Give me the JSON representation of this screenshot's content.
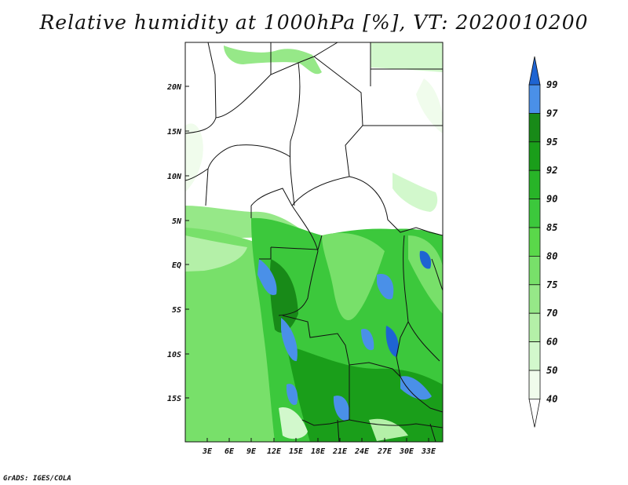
{
  "title": "Relative humidity at 1000hPa [%], VT: 2020010200",
  "footer": "GrADS: IGES/COLA",
  "map": {
    "lat_ticks": [
      "20N",
      "15N",
      "10N",
      "5N",
      "EQ",
      "5S",
      "10S",
      "15S"
    ],
    "lon_ticks": [
      "3E",
      "6E",
      "9E",
      "12E",
      "15E",
      "18E",
      "21E",
      "24E",
      "27E",
      "30E",
      "33E"
    ],
    "lat_range": [
      -20,
      25
    ],
    "lon_range": [
      0,
      35
    ]
  },
  "colorbar": {
    "labels": [
      "99",
      "97",
      "95",
      "92",
      "90",
      "85",
      "80",
      "75",
      "70",
      "60",
      "50",
      "40"
    ],
    "colors": {
      "40": "#f0fcec",
      "50": "#d2f8cc",
      "60": "#b4f0a8",
      "70": "#96e888",
      "75": "#78e06a",
      "80": "#5ad84a",
      "85": "#3cc83c",
      "90": "#28b428",
      "92": "#1a9e1a",
      "95": "#188a18",
      "97": "#4a90e8",
      "99": "#1e64d2"
    }
  }
}
